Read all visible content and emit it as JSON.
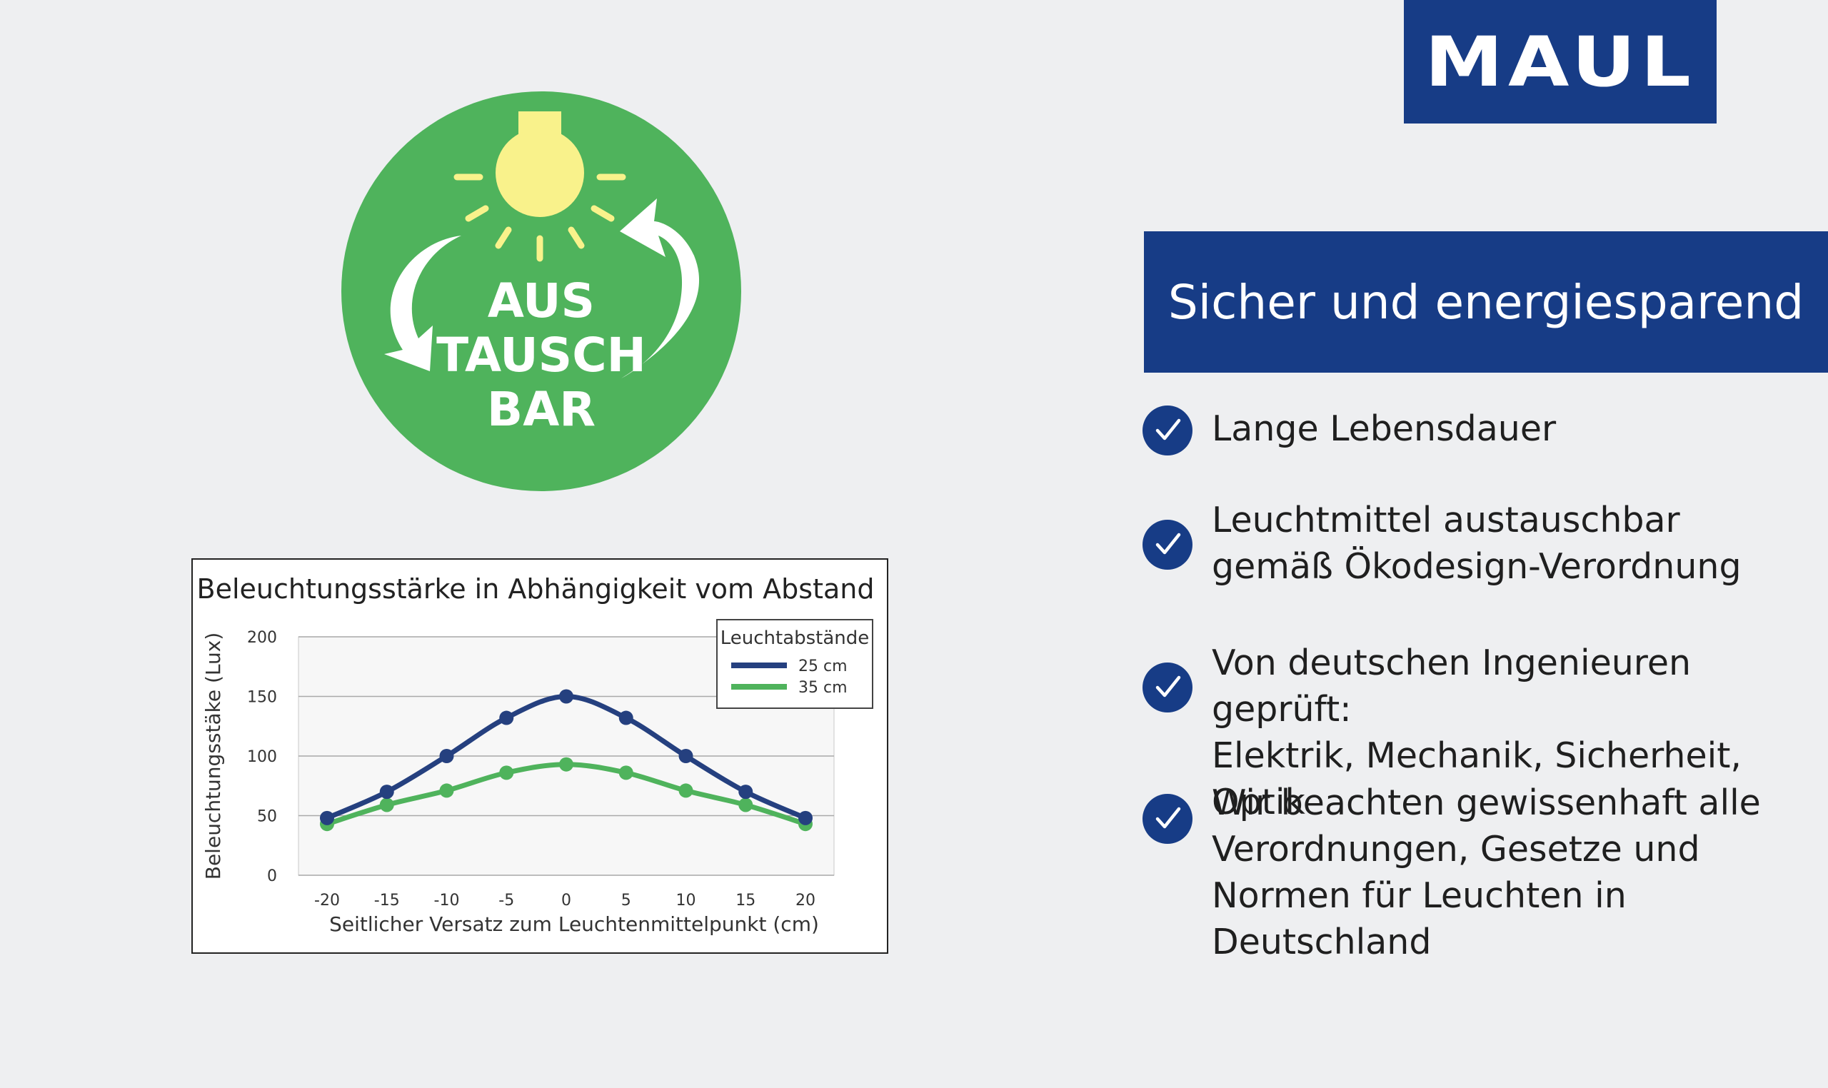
{
  "brand": {
    "name": "MAUL"
  },
  "badge": {
    "lines": [
      "AUS",
      "TAUSCH",
      "BAR"
    ],
    "icon": "lightbulb-icon"
  },
  "banner": {
    "title": "Sicher und energiesparend"
  },
  "features": [
    {
      "lines": [
        "Lange Lebensdauer"
      ]
    },
    {
      "lines": [
        "Leuchtmittel austauschbar",
        "gemäß Ökodesign-Verordnung"
      ]
    },
    {
      "lines": [
        "Von deutschen Ingenieuren geprüft:",
        "Elektrik, Mechanik, Sicherheit, Optik"
      ]
    },
    {
      "lines": [
        "Wir beachten gewissenhaft alle",
        "Verordnungen, Gesetze und",
        "Normen für Leuchten in",
        "Deutschland"
      ]
    }
  ],
  "colors": {
    "brand_blue": "#173c86",
    "badge_green": "#4fb35c",
    "bulb_yellow": "#f9f28b",
    "series_25": "#25407f",
    "series_35": "#4fb35c",
    "background": "#eeeff1"
  },
  "chart_data": {
    "type": "line",
    "title": "Beleuchtungsstärke in Abhängigkeit vom Abstand",
    "xlabel": "Seitlicher Versatz zum Leuchtenmittelpunkt (cm)",
    "ylabel": "Beleuchtungsstäke (Lux)",
    "x": [
      -20,
      -15,
      -10,
      -5,
      0,
      5,
      10,
      15,
      20
    ],
    "x_tick_labels": [
      "-20",
      "-15",
      "-10",
      "-5",
      "0",
      "5",
      "10",
      "15",
      "20"
    ],
    "y_tick_labels": [
      "0",
      "50",
      "100",
      "150",
      "200"
    ],
    "ylim": [
      0,
      200
    ],
    "grid": true,
    "legend": {
      "title": "Leuchtabstände",
      "position": "top-right"
    },
    "series": [
      {
        "name": "25 cm",
        "values": [
          48,
          70,
          100,
          132,
          150,
          132,
          100,
          70,
          48
        ]
      },
      {
        "name": "35 cm",
        "values": [
          43,
          59,
          71,
          86,
          93,
          86,
          71,
          59,
          43
        ]
      }
    ]
  }
}
